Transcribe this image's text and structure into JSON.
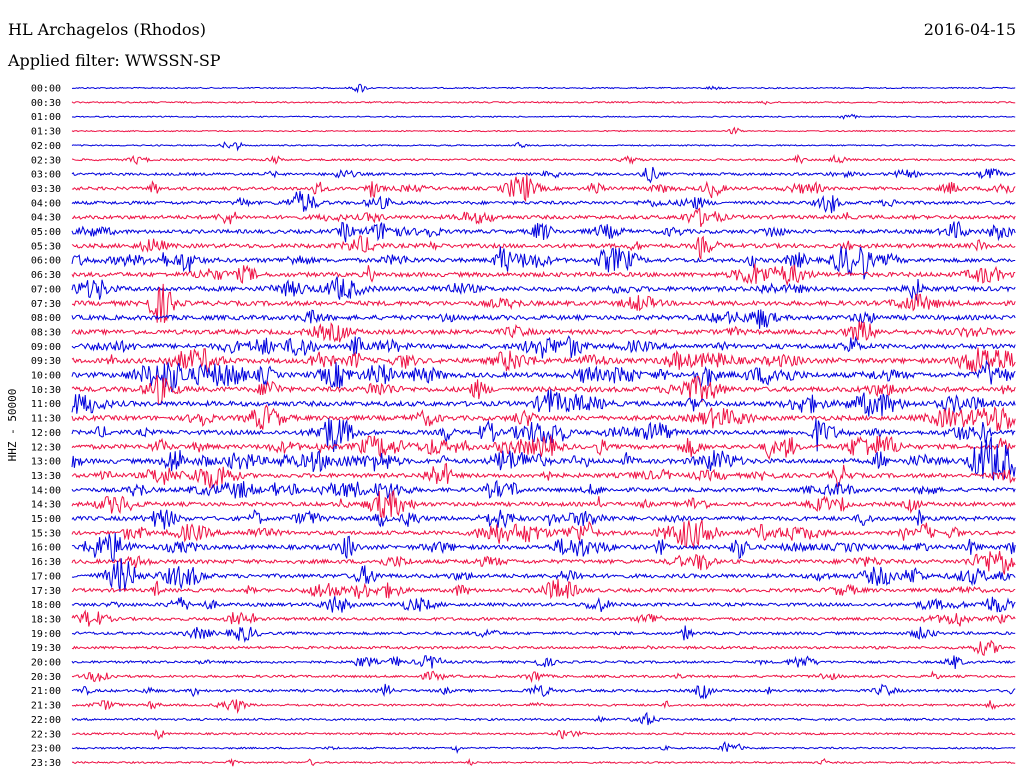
{
  "header": {
    "station": "HL Archagelos (Rhodos)",
    "date": "2016-04-15",
    "filter_label": "Applied filter:",
    "filter_name": "WWSSN-SP"
  },
  "chart_data": {
    "type": "line",
    "ylabel": "HHZ - 50000",
    "colors": {
      "blue": "#0000dd",
      "red": "#ee1144"
    },
    "rows": [
      {
        "label": "00:00",
        "color": "blue",
        "activity": 0.1
      },
      {
        "label": "00:30",
        "color": "red",
        "activity": 0.15
      },
      {
        "label": "01:00",
        "color": "blue",
        "activity": 0.08
      },
      {
        "label": "01:30",
        "color": "red",
        "activity": 0.08
      },
      {
        "label": "02:00",
        "color": "blue",
        "activity": 0.12
      },
      {
        "label": "02:30",
        "color": "red",
        "activity": 0.25
      },
      {
        "label": "03:00",
        "color": "blue",
        "activity": 0.4
      },
      {
        "label": "03:30",
        "color": "red",
        "activity": 0.55
      },
      {
        "label": "04:00",
        "color": "blue",
        "activity": 0.55
      },
      {
        "label": "04:30",
        "color": "red",
        "activity": 0.65
      },
      {
        "label": "05:00",
        "color": "blue",
        "activity": 0.65
      },
      {
        "label": "05:30",
        "color": "red",
        "activity": 0.75
      },
      {
        "label": "06:00",
        "color": "blue",
        "activity": 0.75
      },
      {
        "label": "06:30",
        "color": "red",
        "activity": 0.8
      },
      {
        "label": "07:00",
        "color": "blue",
        "activity": 0.85
      },
      {
        "label": "07:30",
        "color": "red",
        "activity": 0.85
      },
      {
        "label": "08:00",
        "color": "blue",
        "activity": 0.85
      },
      {
        "label": "08:30",
        "color": "red",
        "activity": 0.85
      },
      {
        "label": "09:00",
        "color": "blue",
        "activity": 0.9
      },
      {
        "label": "09:30",
        "color": "red",
        "activity": 0.9
      },
      {
        "label": "10:00",
        "color": "blue",
        "activity": 0.9
      },
      {
        "label": "10:30",
        "color": "red",
        "activity": 0.9
      },
      {
        "label": "11:00",
        "color": "blue",
        "activity": 0.9
      },
      {
        "label": "11:30",
        "color": "red",
        "activity": 0.85
      },
      {
        "label": "12:00",
        "color": "blue",
        "activity": 0.8
      },
      {
        "label": "12:30",
        "color": "red",
        "activity": 0.8
      },
      {
        "label": "13:00",
        "color": "blue",
        "activity": 0.85
      },
      {
        "label": "13:30",
        "color": "red",
        "activity": 0.75
      },
      {
        "label": "14:00",
        "color": "blue",
        "activity": 0.7
      },
      {
        "label": "14:30",
        "color": "red",
        "activity": 0.7
      },
      {
        "label": "15:00",
        "color": "blue",
        "activity": 0.75
      },
      {
        "label": "15:30",
        "color": "red",
        "activity": 0.7
      },
      {
        "label": "16:00",
        "color": "blue",
        "activity": 0.75
      },
      {
        "label": "16:30",
        "color": "red",
        "activity": 0.7
      },
      {
        "label": "17:00",
        "color": "blue",
        "activity": 0.7
      },
      {
        "label": "17:30",
        "color": "red",
        "activity": 0.6
      },
      {
        "label": "18:00",
        "color": "blue",
        "activity": 0.55
      },
      {
        "label": "18:30",
        "color": "red",
        "activity": 0.5
      },
      {
        "label": "19:00",
        "color": "blue",
        "activity": 0.45
      },
      {
        "label": "19:30",
        "color": "red",
        "activity": 0.4
      },
      {
        "label": "20:00",
        "color": "blue",
        "activity": 0.35
      },
      {
        "label": "20:30",
        "color": "red",
        "activity": 0.35
      },
      {
        "label": "21:00",
        "color": "blue",
        "activity": 0.4
      },
      {
        "label": "21:30",
        "color": "red",
        "activity": 0.3
      },
      {
        "label": "22:00",
        "color": "blue",
        "activity": 0.3
      },
      {
        "label": "22:30",
        "color": "red",
        "activity": 0.25
      },
      {
        "label": "23:00",
        "color": "blue",
        "activity": 0.2
      },
      {
        "label": "23:30",
        "color": "red",
        "activity": 0.2
      }
    ]
  }
}
